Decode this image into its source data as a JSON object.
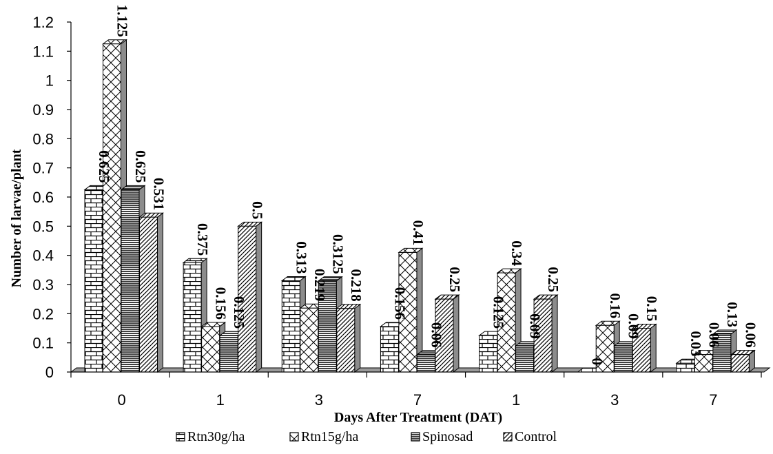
{
  "chart_data": {
    "type": "bar",
    "categories": [
      "0",
      "1",
      "3",
      "7",
      "1",
      "3",
      "7"
    ],
    "series": [
      {
        "name": "Rtn30g/ha",
        "values": [
          0.625,
          0.375,
          0.313,
          0.156,
          0.125,
          0,
          0.03
        ],
        "labels": [
          "0.625",
          "0.375",
          "0.313",
          "0.156",
          "0.125",
          "0",
          "0.03"
        ],
        "pattern": "brick"
      },
      {
        "name": "Rtn15g/ha",
        "values": [
          1.125,
          0.156,
          0.219,
          0.41,
          0.34,
          0.16,
          0.06
        ],
        "labels": [
          "1.125",
          "0.156",
          "0.219",
          "0.41",
          "0.34",
          "0.16",
          "0.06"
        ],
        "pattern": "diamond"
      },
      {
        "name": "Spinosad",
        "values": [
          0.625,
          0.125,
          0.3125,
          0.06,
          0.09,
          0.09,
          0.13
        ],
        "labels": [
          "0.625",
          "0.125",
          "0.3125",
          "0.06",
          "0.09",
          "0.09",
          "0.13"
        ],
        "pattern": "hlines"
      },
      {
        "name": "Control",
        "values": [
          0.531,
          0.5,
          0.218,
          0.25,
          0.25,
          0.15,
          0.06
        ],
        "labels": [
          "0.531",
          "0.5",
          "0.218",
          "0.25",
          "0.25",
          "0.15",
          "0.06"
        ],
        "pattern": "diag"
      }
    ],
    "xlabel": "Days After Treatment (DAT)",
    "ylabel": "Number of larvae/plant",
    "ylim": [
      0,
      1.2
    ],
    "yticks": [
      "0",
      "0.1",
      "0.2",
      "0.3",
      "0.4",
      "0.5",
      "0.6",
      "0.7",
      "0.8",
      "0.9",
      "1",
      "1.1",
      "1.2"
    ],
    "grid": false,
    "legend_position": "bottom",
    "style": "3d-column"
  }
}
